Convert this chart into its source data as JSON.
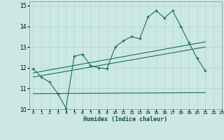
{
  "xlabel": "Humidex (Indice chaleur)",
  "background_color": "#cce8e4",
  "line_color": "#1a6e62",
  "xlim": [
    -0.5,
    23
  ],
  "ylim": [
    10,
    15.2
  ],
  "xtick_labels": [
    "0",
    "1",
    "2",
    "3",
    "4",
    "5",
    "6",
    "7",
    "8",
    "9",
    "10",
    "11",
    "12",
    "13",
    "14",
    "15",
    "16",
    "17",
    "18",
    "19",
    "20",
    "21",
    "22",
    "23"
  ],
  "xtick_pos": [
    0,
    1,
    2,
    3,
    4,
    5,
    6,
    7,
    8,
    9,
    10,
    11,
    12,
    13,
    14,
    15,
    16,
    17,
    18,
    19,
    20,
    21,
    22,
    23
  ],
  "yticks": [
    10,
    11,
    12,
    13,
    14,
    15
  ],
  "grid_color": "#b0d8d0",
  "series1_x": [
    0,
    1,
    2,
    3,
    4,
    5,
    6,
    7,
    8,
    9,
    10,
    11,
    12,
    13,
    14,
    15,
    16,
    17,
    18,
    19,
    20,
    21
  ],
  "series1_y": [
    11.95,
    11.55,
    11.3,
    10.75,
    10.05,
    12.55,
    12.65,
    12.1,
    12.0,
    11.95,
    13.0,
    13.3,
    13.5,
    13.4,
    14.45,
    14.75,
    14.4,
    14.75,
    14.0,
    13.2,
    12.45,
    11.85
  ],
  "series2_x": [
    0,
    21
  ],
  "series2_y": [
    11.75,
    13.25
  ],
  "series3_x": [
    0,
    21
  ],
  "series3_y": [
    11.55,
    13.0
  ],
  "series4_x": [
    0,
    21
  ],
  "series4_y": [
    10.75,
    10.8
  ]
}
